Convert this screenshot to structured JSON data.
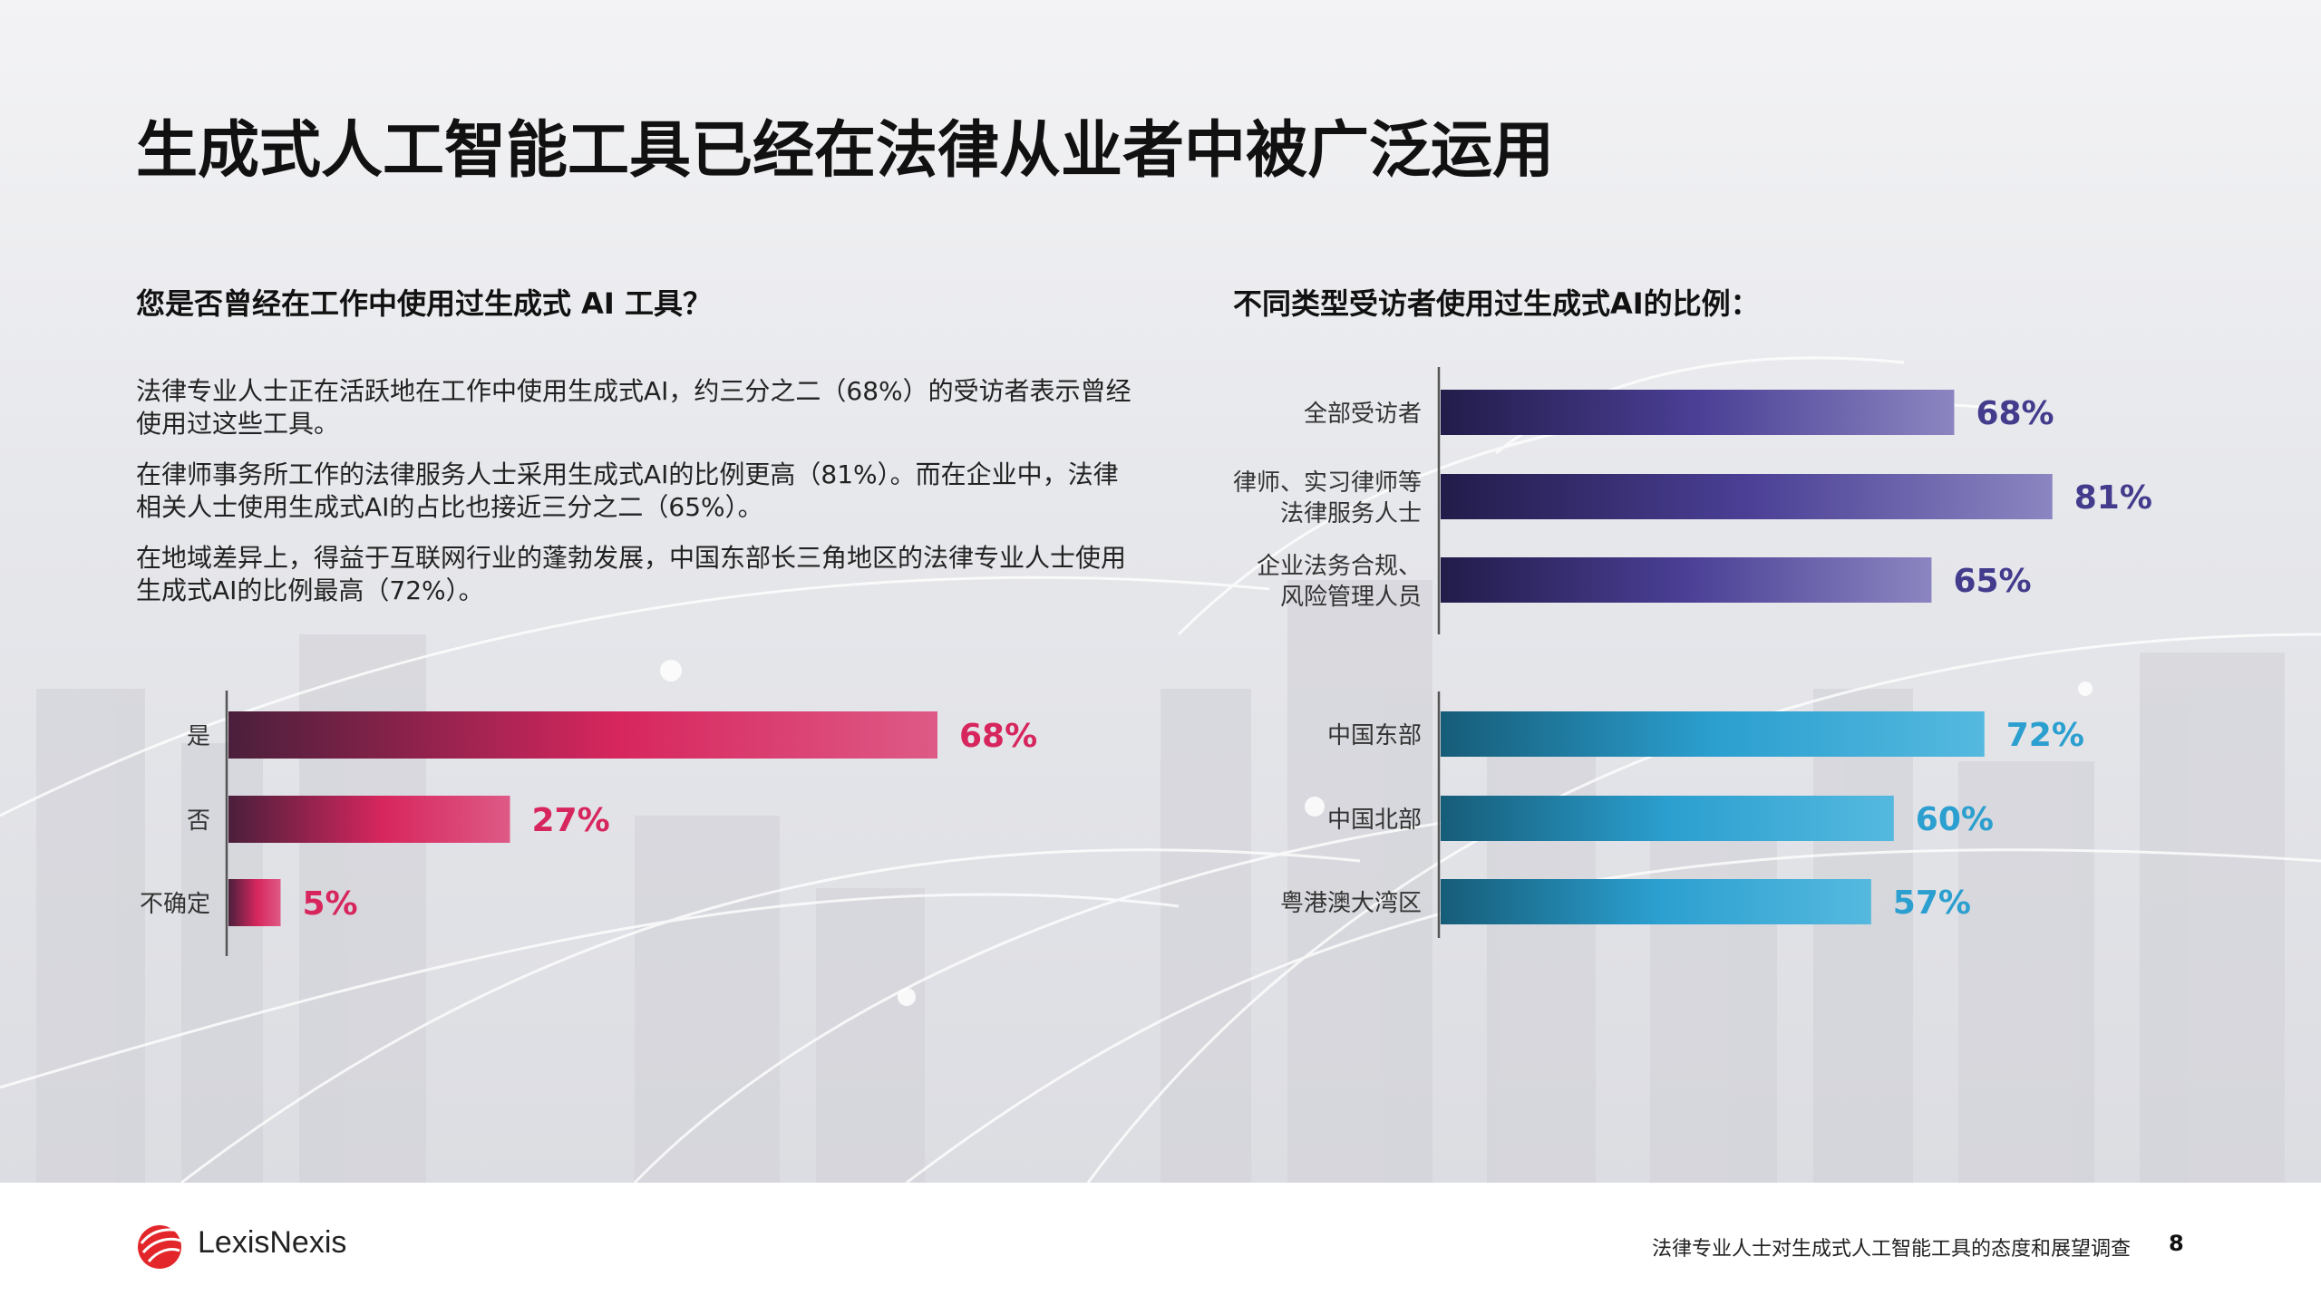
{
  "title": "生成式人工智能工具已经在法律从业者中被广泛运用",
  "left_heading": "您是否曾经在工作中使用过生成式 AI 工具？",
  "right_heading": "不同类型受访者使用过生成式AI的比例：",
  "paragraphs": [
    "法律专业人士正在活跃地在工作中使用生成式AI，约三分之二（68%）的受访者表示曾经使用过这些工具。",
    "在律师事务所工作的法律服务人士采用生成式AI的比例更高（81%）。而在企业中，法律相关人士使用生成式AI的占比也接近三分之二（65%）。",
    "在地域差异上，得益于互联网行业的蓬勃发展，中国东部长三角地区的法律专业人士使用生成式AI的比例最高（72%）。"
  ],
  "chart_data": [
    {
      "type": "bar",
      "orientation": "horizontal",
      "title": "您是否曾经在工作中使用过生成式 AI 工具？",
      "categories": [
        "是",
        "否",
        "不确定"
      ],
      "values": [
        68,
        27,
        5
      ],
      "value_labels": [
        "68%",
        "27%",
        "5%"
      ],
      "unit": "%",
      "xlim": [
        0,
        100
      ],
      "color": "#d7265e"
    },
    {
      "type": "bar",
      "orientation": "horizontal",
      "title": "不同类型受访者使用过生成式AI的比例：",
      "groups": [
        {
          "categories": [
            [
              "全部受访者"
            ],
            [
              "律师、实习律师等",
              "法律服务人士"
            ],
            [
              "企业法务合规、",
              "风险管理人员"
            ]
          ],
          "values": [
            68,
            81,
            65
          ],
          "value_labels": [
            "68%",
            "81%",
            "65%"
          ],
          "color": "#433b8c"
        },
        {
          "categories": [
            [
              "中国东部"
            ],
            [
              "中国北部"
            ],
            [
              "粤港澳大湾区"
            ]
          ],
          "values": [
            72,
            60,
            57
          ],
          "value_labels": [
            "72%",
            "60%",
            "57%"
          ],
          "color": "#2b9fcf"
        }
      ],
      "unit": "%",
      "xlim": [
        0,
        100
      ]
    }
  ],
  "footer": {
    "brand": "LexisNexis",
    "report_title": "法律专业人士对生成式人工智能工具的态度和展望调查",
    "page_number": "8"
  }
}
